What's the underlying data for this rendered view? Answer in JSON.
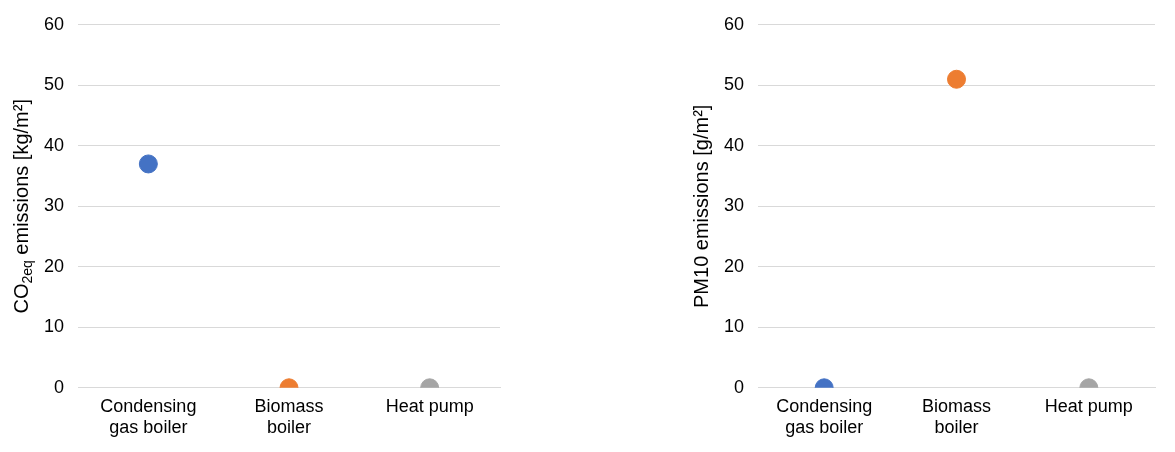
{
  "chart_data": [
    {
      "type": "scatter",
      "ylabel": "CO$_{2eq}$ emissions [kg/m²]",
      "categories": [
        "Condensing gas boiler",
        "Biomass boiler",
        "Heat pump"
      ],
      "values": [
        37,
        0,
        0
      ],
      "colors": [
        "#4472c4",
        "#ed7d31",
        "#a5a5a5"
      ],
      "ylim": [
        0,
        60
      ],
      "yticks": [
        0,
        10,
        20,
        30,
        40,
        50,
        60
      ],
      "grid": "y",
      "marker": "circle",
      "legend": false
    },
    {
      "type": "scatter",
      "ylabel": "PM10 emissions [g/m²]",
      "categories": [
        "Condensing gas boiler",
        "Biomass boiler",
        "Heat pump"
      ],
      "values": [
        0,
        51,
        0
      ],
      "colors": [
        "#4472c4",
        "#ed7d31",
        "#a5a5a5"
      ],
      "ylim": [
        0,
        60
      ],
      "yticks": [
        0,
        10,
        20,
        30,
        40,
        50,
        60
      ],
      "grid": "y",
      "marker": "circle",
      "legend": false
    }
  ]
}
